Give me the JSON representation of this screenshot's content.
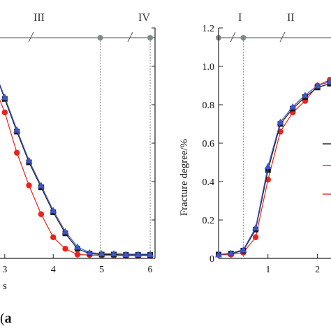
{
  "figure": {
    "panel_label_open": "(",
    "panel_label_letter": "a",
    "colors": {
      "black": "#1a1a1a",
      "red": "#e8241e",
      "blue": "#3d55c9",
      "stage_line": "#8a8a8a",
      "stage_dot": "#7d8b8b"
    }
  },
  "chart_data": [
    {
      "type": "line",
      "panel": "left",
      "xlabel": "s",
      "ylabel": "",
      "xlim": [
        2.7,
        6.1
      ],
      "ylim": [
        0,
        1.2
      ],
      "x_ticks": [
        "3",
        "4",
        "5",
        "6"
      ],
      "stage_labels": [
        "III",
        "IV"
      ],
      "stage_boundaries": [
        4.97,
        6.0
      ],
      "series": [
        {
          "color": "#1a1a1a",
          "marker": "square",
          "x": [
            2.75,
            3.0,
            3.25,
            3.5,
            3.75,
            4.0,
            4.25,
            4.5,
            4.75,
            5.0,
            5.25,
            5.5,
            5.75,
            6.0
          ],
          "y": [
            1.0,
            0.83,
            0.66,
            0.5,
            0.37,
            0.24,
            0.13,
            0.05,
            0.025,
            0.02,
            0.02,
            0.018,
            0.018,
            0.018
          ]
        },
        {
          "color": "#e8241e",
          "marker": "circle",
          "x": [
            2.75,
            3.0,
            3.25,
            3.5,
            3.75,
            4.0,
            4.25,
            4.5,
            4.75,
            5.0,
            5.25,
            5.5,
            5.75,
            6.0
          ],
          "y": [
            0.92,
            0.76,
            0.55,
            0.38,
            0.23,
            0.11,
            0.05,
            0.02,
            0.018,
            0.015,
            0.015,
            0.015,
            0.015,
            0.015
          ]
        },
        {
          "color": "#3d55c9",
          "marker": "triangle",
          "x": [
            2.75,
            3.0,
            3.25,
            3.5,
            3.75,
            4.0,
            4.25,
            4.5,
            4.75,
            5.0,
            5.25,
            5.5,
            5.75,
            6.0
          ],
          "y": [
            1.0,
            0.84,
            0.67,
            0.51,
            0.38,
            0.25,
            0.14,
            0.06,
            0.03,
            0.025,
            0.025,
            0.022,
            0.022,
            0.022
          ]
        }
      ]
    },
    {
      "type": "line",
      "panel": "right",
      "xlabel": "",
      "ylabel": "Fracture degree/%",
      "xlim": [
        0,
        2.33
      ],
      "ylim": [
        0,
        1.2
      ],
      "x_ticks": [
        "1",
        "2"
      ],
      "y_ticks": [
        "0",
        "0.2",
        "0.4",
        "0.6",
        "0.8",
        "1.0",
        "1.2"
      ],
      "stage_labels": [
        "I",
        "II"
      ],
      "stage_boundaries": [
        0.5
      ],
      "series": [
        {
          "color": "#1a1a1a",
          "marker": "square",
          "x": [
            0.0,
            0.25,
            0.5,
            0.75,
            1.0,
            1.25,
            1.5,
            1.75,
            2.0,
            2.25
          ],
          "y": [
            0.02,
            0.025,
            0.04,
            0.15,
            0.46,
            0.7,
            0.78,
            0.84,
            0.89,
            0.91
          ]
        },
        {
          "color": "#e8241e",
          "marker": "circle",
          "x": [
            0.0,
            0.25,
            0.5,
            0.75,
            1.0,
            1.25,
            1.5,
            1.75,
            2.0,
            2.25
          ],
          "y": [
            0.018,
            0.02,
            0.03,
            0.11,
            0.41,
            0.66,
            0.76,
            0.82,
            0.9,
            0.93
          ]
        },
        {
          "color": "#3d55c9",
          "marker": "triangle",
          "x": [
            0.0,
            0.25,
            0.5,
            0.75,
            1.0,
            1.25,
            1.5,
            1.75,
            2.0,
            2.25
          ],
          "y": [
            0.02,
            0.027,
            0.045,
            0.16,
            0.48,
            0.71,
            0.79,
            0.85,
            0.9,
            0.92
          ]
        }
      ]
    }
  ]
}
